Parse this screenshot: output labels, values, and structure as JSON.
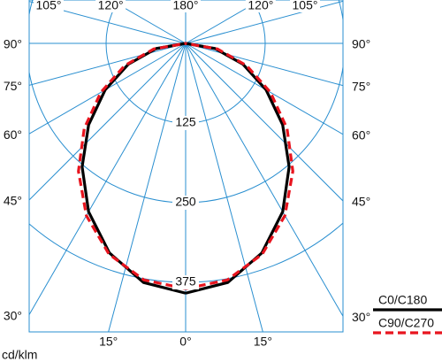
{
  "chart_data": {
    "type": "polar",
    "unit_label": "cd/klm",
    "angles": [
      0,
      10,
      20,
      30,
      40,
      50,
      60,
      70,
      80,
      90
    ],
    "series": [
      {
        "name": "C0/C180",
        "color": "#000000",
        "dashed": false,
        "values": [
          392,
          381,
          350,
          305,
          253,
          199,
          146,
          96,
          47,
          0
        ]
      },
      {
        "name": "C90/C270",
        "color": "#e8141e",
        "dashed": true,
        "values": [
          385,
          377,
          352,
          312,
          262,
          208,
          154,
          102,
          51,
          0
        ]
      }
    ],
    "rlim": [
      0,
      375
    ],
    "rticks": [
      125,
      250,
      375
    ],
    "angle_ticks": [
      {
        "value": -15,
        "label": "15°"
      },
      {
        "value": 0,
        "label": "0°"
      },
      {
        "value": 15,
        "label": "15°"
      },
      {
        "value": 30,
        "label": "30°"
      },
      {
        "value": 45,
        "label": "45°"
      },
      {
        "value": 60,
        "label": "60°"
      },
      {
        "value": 75,
        "label": "75°"
      },
      {
        "value": 90,
        "label": "90°"
      },
      {
        "value": -30,
        "label": "30°"
      },
      {
        "value": -45,
        "label": "45°"
      },
      {
        "value": -60,
        "label": "60°"
      },
      {
        "value": -75,
        "label": "75°"
      },
      {
        "value": -90,
        "label": "90°"
      },
      {
        "value": -105,
        "label": "105°"
      },
      {
        "value": -120,
        "label": "120°"
      },
      {
        "value": 180,
        "label": "180°"
      },
      {
        "value": 120,
        "label": "120°"
      },
      {
        "value": 105,
        "label": "105°"
      }
    ],
    "grid_color": "#2a8fd0"
  }
}
